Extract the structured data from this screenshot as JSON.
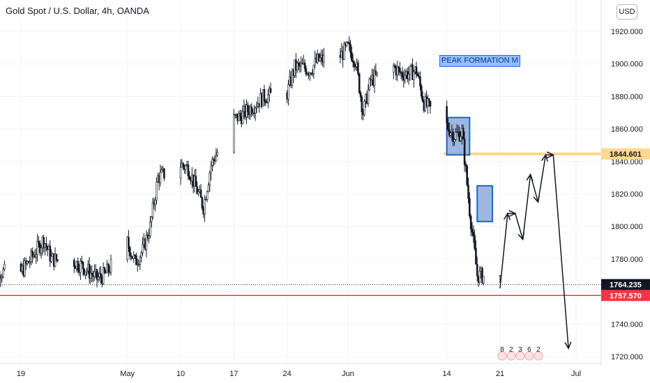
{
  "header": {
    "symbol_title": "Gold Spot / U.S. Dollar, 4h, OANDA",
    "currency_button": "USD"
  },
  "annotation": {
    "text": "PEAK FORMATION M"
  },
  "colors": {
    "candle": "#131722",
    "support_line": "#f23645",
    "resistance_line": "#ffd88f",
    "box_fill": "#7f9fd6",
    "box_border": "#1e64c8",
    "price_marker": "#131722"
  },
  "chart_data": {
    "type": "candlestick",
    "title": "Gold Spot / U.S. Dollar, 4h, OANDA",
    "y_ticks": [
      1720,
      1740,
      1760,
      1780,
      1800,
      1820,
      1840,
      1860,
      1880,
      1900,
      1920
    ],
    "y_tick_labels": [
      "1720.000",
      "1740.000",
      "1760.000",
      "1780.000",
      "1800.000",
      "1820.000",
      "1840.000",
      "1860.000",
      "1880.000",
      "1900.000",
      "1920.000"
    ],
    "ylim": [
      1716,
      1930
    ],
    "x_tick_labels": [
      "19",
      "May",
      "10",
      "17",
      "24",
      "Jun",
      "14",
      "21",
      "Jul"
    ],
    "x_tick_dates": [
      "2021-04-19",
      "2021-05-03",
      "2021-05-10",
      "2021-05-17",
      "2021-05-24",
      "2021-06-01",
      "2021-06-14",
      "2021-06-21",
      "2021-07-01"
    ],
    "price_path": [
      [
        "2021-04-15",
        1742
      ],
      [
        "2021-04-16",
        1772
      ],
      [
        "2021-04-19",
        1772
      ],
      [
        "2021-04-20",
        1778
      ],
      [
        "2021-04-22",
        1792
      ],
      [
        "2021-04-23",
        1780
      ],
      [
        "2021-04-26",
        1778
      ],
      [
        "2021-04-27",
        1776
      ],
      [
        "2021-04-28",
        1772
      ],
      [
        "2021-04-29",
        1768
      ],
      [
        "2021-04-30",
        1770
      ],
      [
        "2021-05-03",
        1790
      ],
      [
        "2021-05-04",
        1778
      ],
      [
        "2021-05-05",
        1785
      ],
      [
        "2021-05-06",
        1800
      ],
      [
        "2021-05-07",
        1830
      ],
      [
        "2021-05-10",
        1838
      ],
      [
        "2021-05-11",
        1836
      ],
      [
        "2021-05-12",
        1824
      ],
      [
        "2021-05-13",
        1812
      ],
      [
        "2021-05-14",
        1838
      ],
      [
        "2021-05-17",
        1866
      ],
      [
        "2021-05-18",
        1868
      ],
      [
        "2021-05-19",
        1872
      ],
      [
        "2021-05-20",
        1876
      ],
      [
        "2021-05-21",
        1880
      ],
      [
        "2021-05-24",
        1882
      ],
      [
        "2021-05-25",
        1898
      ],
      [
        "2021-05-26",
        1898
      ],
      [
        "2021-05-27",
        1896
      ],
      [
        "2021-05-28",
        1902
      ],
      [
        "2021-05-31",
        1905
      ],
      [
        "2021-06-01",
        1910
      ],
      [
        "2021-06-02",
        1902
      ],
      [
        "2021-06-03",
        1870
      ],
      [
        "2021-06-04",
        1890
      ],
      [
        "2021-06-07",
        1898
      ],
      [
        "2021-06-08",
        1894
      ],
      [
        "2021-06-09",
        1894
      ],
      [
        "2021-06-10",
        1896
      ],
      [
        "2021-06-11",
        1876
      ],
      [
        "2021-06-14",
        1862
      ],
      [
        "2021-06-15",
        1856
      ],
      [
        "2021-06-16",
        1858
      ],
      [
        "2021-06-17",
        1810
      ],
      [
        "2021-06-18",
        1770
      ],
      [
        "2021-06-21",
        1768
      ]
    ],
    "horizontal_levels": [
      {
        "price": 1844.601,
        "label": "1844.601",
        "style": "resistance"
      },
      {
        "price": 1764.235,
        "label": "1764.235",
        "style": "current-price"
      },
      {
        "price": 1757.57,
        "label": "1757.570",
        "style": "support"
      }
    ],
    "boxes": [
      {
        "from": "2021-06-14",
        "to": "2021-06-17",
        "top": 1867,
        "bottom": 1844
      },
      {
        "from": "2021-06-18",
        "to": "2021-06-20",
        "top": 1825,
        "bottom": 1803
      }
    ],
    "projection_path": [
      [
        "2021-06-21",
        1762
      ],
      [
        "2021-06-22",
        1808
      ],
      [
        "2021-06-23",
        1808
      ],
      [
        "2021-06-24",
        1792
      ],
      [
        "2021-06-25",
        1832
      ],
      [
        "2021-06-26",
        1815
      ],
      [
        "2021-06-27",
        1844
      ],
      [
        "2021-06-28",
        1844
      ],
      [
        "2021-06-30",
        1725
      ]
    ],
    "watermark_digits": [
      "8",
      "2",
      "3",
      "6",
      "2"
    ]
  }
}
